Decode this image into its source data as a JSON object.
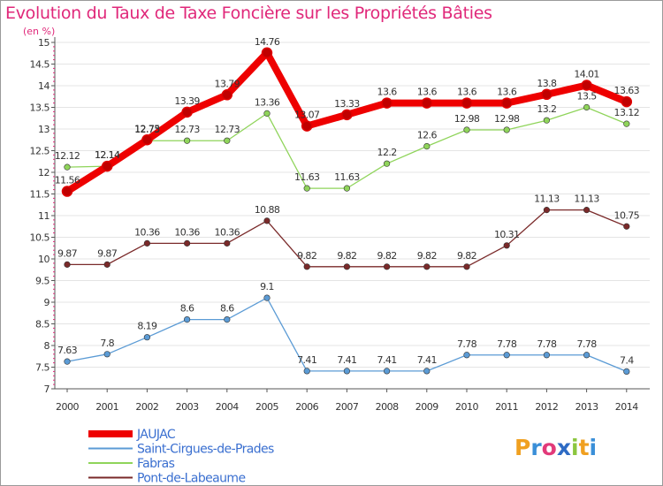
{
  "chart_data": {
    "type": "line",
    "title": "Evolution du Taux de Taxe Foncière sur les Propriétés Bâties",
    "unit_label": "(en %)",
    "x": [
      "2000",
      "2001",
      "2002",
      "2003",
      "2004",
      "2005",
      "2006",
      "2007",
      "2008",
      "2009",
      "2010",
      "2011",
      "2012",
      "2013",
      "2014"
    ],
    "ylim": [
      7,
      15
    ],
    "y_ticks": [
      "7",
      "7.5",
      "8",
      "8.5",
      "9",
      "9.5",
      "10",
      "10.5",
      "11",
      "11.5",
      "12",
      "12.5",
      "13",
      "13.5",
      "14",
      "14.5",
      "15"
    ],
    "series": [
      {
        "name": "JAUJAC",
        "color": "#ee0000",
        "values": [
          11.56,
          12.14,
          12.75,
          13.39,
          13.79,
          14.76,
          13.07,
          13.33,
          13.6,
          13.6,
          13.6,
          13.6,
          13.8,
          14.01,
          13.63
        ],
        "labels": [
          "11.56",
          "12.14",
          "12.75",
          "13.39",
          "13.79",
          "14.76",
          "13.07",
          "13.33",
          "13.6",
          "13.6",
          "13.6",
          "13.6",
          "13.8",
          "14.01",
          "13.63"
        ]
      },
      {
        "name": "Saint-Cirgues-de-Prades",
        "color": "#5b9bd5",
        "values": [
          7.63,
          7.8,
          8.19,
          8.6,
          8.6,
          9.1,
          7.41,
          7.41,
          7.41,
          7.41,
          7.78,
          7.78,
          7.78,
          7.78,
          7.4
        ],
        "labels": [
          "7.63",
          "7.8",
          "8.19",
          "8.6",
          "8.6",
          "9.1",
          "7.41",
          "7.41",
          "7.41",
          "7.41",
          "7.78",
          "7.78",
          "7.78",
          "7.78",
          "7.4"
        ]
      },
      {
        "name": "Fabras",
        "color": "#8fd45a",
        "values": [
          12.12,
          12.14,
          12.73,
          12.73,
          12.73,
          13.36,
          11.63,
          11.63,
          12.2,
          12.6,
          12.98,
          12.98,
          13.2,
          13.5,
          13.12
        ],
        "labels": [
          "12.12",
          "12.14",
          "12.73",
          "12.73",
          "12.73",
          "13.36",
          "11.63",
          "11.63",
          "12.2",
          "12.6",
          "12.98",
          "12.98",
          "13.2",
          "13.5",
          "13.12"
        ]
      },
      {
        "name": "Pont-de-Labeaume",
        "color": "#7a2a2a",
        "values": [
          9.87,
          9.87,
          10.36,
          10.36,
          10.36,
          10.88,
          9.82,
          9.82,
          9.82,
          9.82,
          9.82,
          10.31,
          11.13,
          11.13,
          10.75
        ],
        "labels": [
          "9.87",
          "9.87",
          "10.36",
          "10.36",
          "10.36",
          "10.88",
          "9.82",
          "9.82",
          "9.82",
          "9.82",
          "9.82",
          "10.31",
          "11.13",
          "11.13",
          "10.75"
        ]
      }
    ],
    "legend": [
      "JAUJAC",
      "Saint-Cirgues-de-Prades",
      "Fabras",
      "Pont-de-Labeaume"
    ],
    "legend_position": "bottom-left"
  },
  "brand": {
    "text": "Proxiti"
  }
}
